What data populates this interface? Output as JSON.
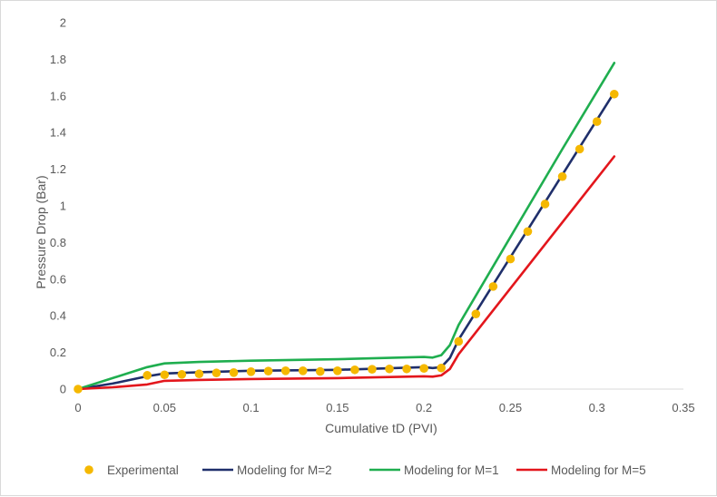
{
  "chart_data": {
    "type": "line",
    "title": "",
    "xlabel": "Cumulative tD (PVI)",
    "ylabel": "Pressure Drop (Bar)",
    "xlim": [
      0,
      0.35
    ],
    "ylim": [
      0,
      2
    ],
    "xticks": [
      0,
      0.05,
      0.1,
      0.15,
      0.2,
      0.25,
      0.3,
      0.35
    ],
    "xtick_labels": [
      "0",
      "0.05",
      "0.1",
      "0.15",
      "0.2",
      "0.25",
      "0.3",
      "0.35"
    ],
    "yticks": [
      0,
      0.2,
      0.4,
      0.6,
      0.8,
      1,
      1.2,
      1.4,
      1.6,
      1.8,
      2
    ],
    "ytick_labels": [
      "0",
      "0.2",
      "0.4",
      "0.6",
      "0.8",
      "1",
      "1.2",
      "1.4",
      "1.6",
      "1.8",
      "2"
    ],
    "grid": false,
    "legend_position": "bottom",
    "series": [
      {
        "name": "Experimental",
        "kind": "scatter",
        "color": "#f5b800",
        "x": [
          0,
          0.04,
          0.05,
          0.06,
          0.07,
          0.08,
          0.09,
          0.1,
          0.11,
          0.12,
          0.13,
          0.14,
          0.15,
          0.16,
          0.17,
          0.18,
          0.19,
          0.2,
          0.21,
          0.22,
          0.23,
          0.24,
          0.25,
          0.26,
          0.27,
          0.28,
          0.29,
          0.3,
          0.31
        ],
        "y": [
          0,
          0.075,
          0.078,
          0.08,
          0.083,
          0.088,
          0.09,
          0.095,
          0.098,
          0.1,
          0.1,
          0.096,
          0.1,
          0.105,
          0.108,
          0.11,
          0.11,
          0.113,
          0.115,
          0.26,
          0.41,
          0.56,
          0.71,
          0.86,
          1.01,
          1.16,
          1.31,
          1.46,
          1.61
        ]
      },
      {
        "name": "Modeling for M=2",
        "kind": "line",
        "color": "#1f2f6b",
        "x": [
          0,
          0.02,
          0.04,
          0.05,
          0.07,
          0.1,
          0.15,
          0.2,
          0.205,
          0.21,
          0.215,
          0.22,
          0.25,
          0.28,
          0.31
        ],
        "y": [
          0,
          0.03,
          0.07,
          0.085,
          0.092,
          0.1,
          0.105,
          0.12,
          0.115,
          0.12,
          0.17,
          0.27,
          0.72,
          1.17,
          1.62
        ]
      },
      {
        "name": "Modeling for M=1",
        "kind": "line",
        "color": "#1fae4f",
        "x": [
          0,
          0.02,
          0.04,
          0.05,
          0.07,
          0.1,
          0.15,
          0.2,
          0.205,
          0.21,
          0.215,
          0.22,
          0.25,
          0.28,
          0.31
        ],
        "y": [
          0,
          0.06,
          0.12,
          0.14,
          0.148,
          0.155,
          0.163,
          0.175,
          0.172,
          0.185,
          0.24,
          0.35,
          0.83,
          1.31,
          1.78
        ]
      },
      {
        "name": "Modeling for M=5",
        "kind": "line",
        "color": "#e3161c",
        "x": [
          0,
          0.02,
          0.04,
          0.05,
          0.07,
          0.1,
          0.15,
          0.2,
          0.205,
          0.21,
          0.215,
          0.22,
          0.25,
          0.28,
          0.31
        ],
        "y": [
          0,
          0.01,
          0.025,
          0.045,
          0.05,
          0.055,
          0.06,
          0.07,
          0.068,
          0.075,
          0.11,
          0.19,
          0.55,
          0.91,
          1.27
        ]
      }
    ]
  }
}
